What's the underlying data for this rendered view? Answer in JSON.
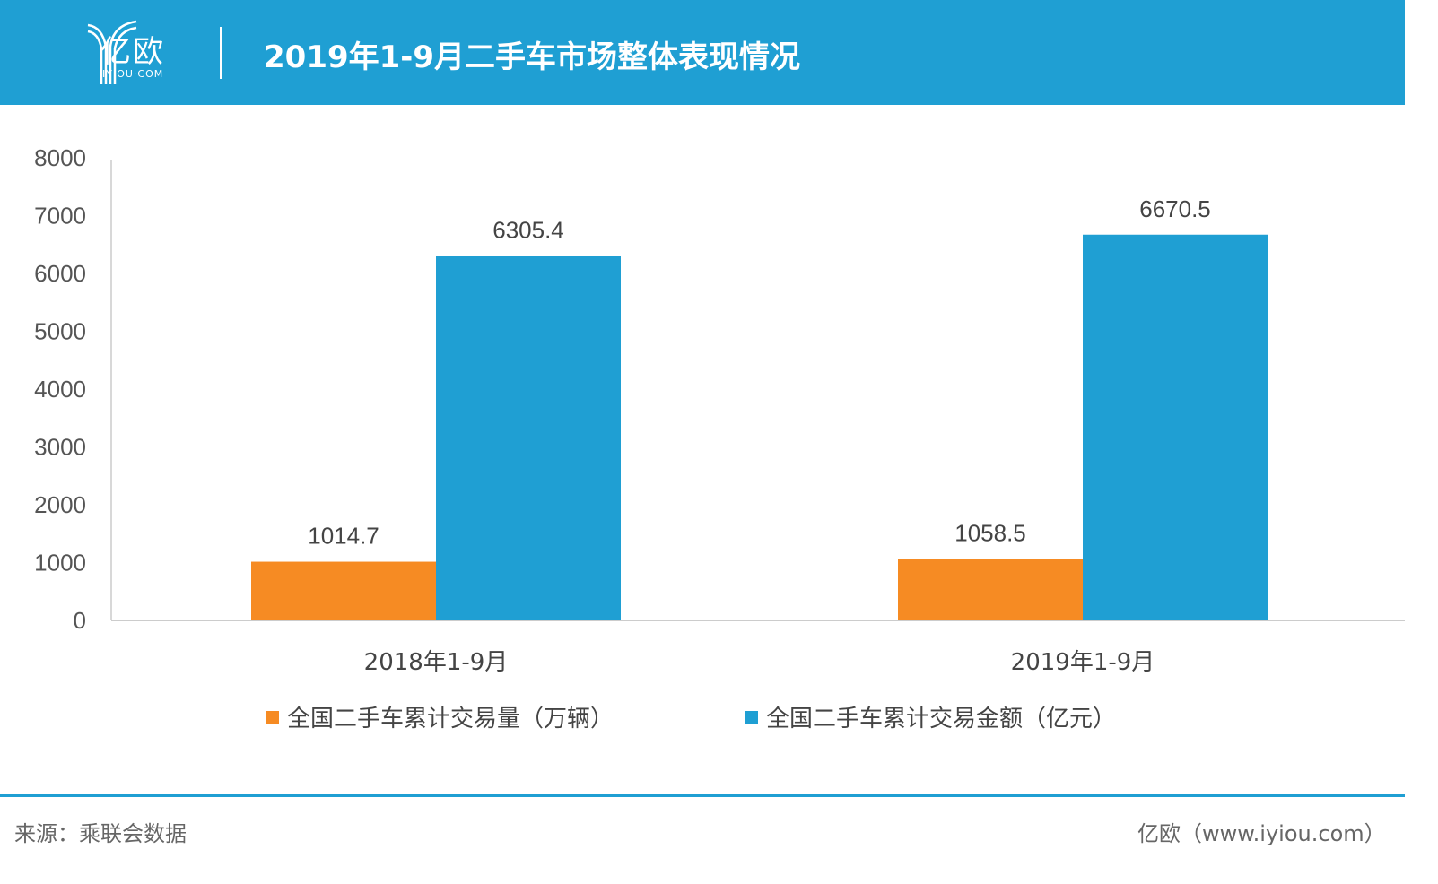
{
  "header": {
    "logo_text": "亿欧",
    "logo_sub": "IYIOU·COM",
    "title": "2019年1-9月二手车市场整体表现情况"
  },
  "chart_data": {
    "type": "bar",
    "categories": [
      "2018年1-9月",
      "2019年1-9月"
    ],
    "series": [
      {
        "name": "全国二手车累计交易量（万辆）",
        "values": [
          1014.7,
          1058.5
        ],
        "color": "#f68b23"
      },
      {
        "name": "全国二手车累计交易金额（亿元）",
        "values": [
          6305.4,
          6670.5
        ],
        "color": "#1f9fd3"
      }
    ],
    "data_labels": [
      [
        "1014.7",
        "1058.5"
      ],
      [
        "6305.4",
        "6670.5"
      ]
    ],
    "yticks": [
      "0",
      "1000",
      "2000",
      "3000",
      "4000",
      "5000",
      "6000",
      "7000",
      "8000"
    ],
    "ylim": [
      0,
      8000
    ],
    "grid": false,
    "legend": "bottom"
  },
  "footer": {
    "source": "来源：乘联会数据",
    "site": "亿欧（www.iyiou.com）"
  }
}
